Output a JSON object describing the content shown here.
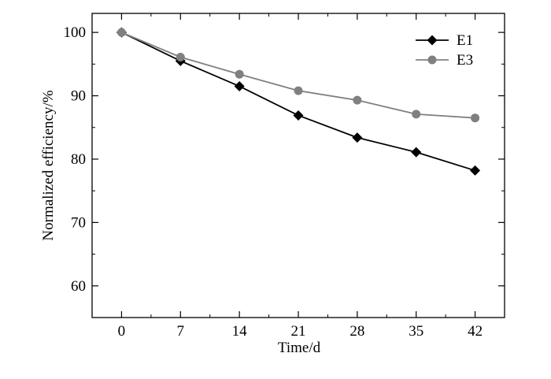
{
  "chart_data": {
    "type": "line",
    "title": "",
    "xlabel": "Time/d",
    "ylabel": "Normalized efficiency/%",
    "x": [
      0,
      7,
      14,
      21,
      28,
      35,
      42
    ],
    "x_ticks": [
      "0",
      "7",
      "14",
      "21",
      "28",
      "35",
      "42"
    ],
    "y_ticks": [
      "60",
      "70",
      "80",
      "90",
      "100"
    ],
    "xlim": [
      -3.5,
      45.5
    ],
    "ylim": [
      55,
      103
    ],
    "grid": false,
    "legend_position": "top-right",
    "series": [
      {
        "name": "E1",
        "marker": "diamond",
        "color": "#000000",
        "values": [
          100,
          95.5,
          91.5,
          86.9,
          83.4,
          81.1,
          78.2
        ]
      },
      {
        "name": "E3",
        "marker": "circle",
        "color": "#808080",
        "values": [
          100,
          96.1,
          93.4,
          90.8,
          89.3,
          87.1,
          86.5
        ]
      }
    ]
  }
}
